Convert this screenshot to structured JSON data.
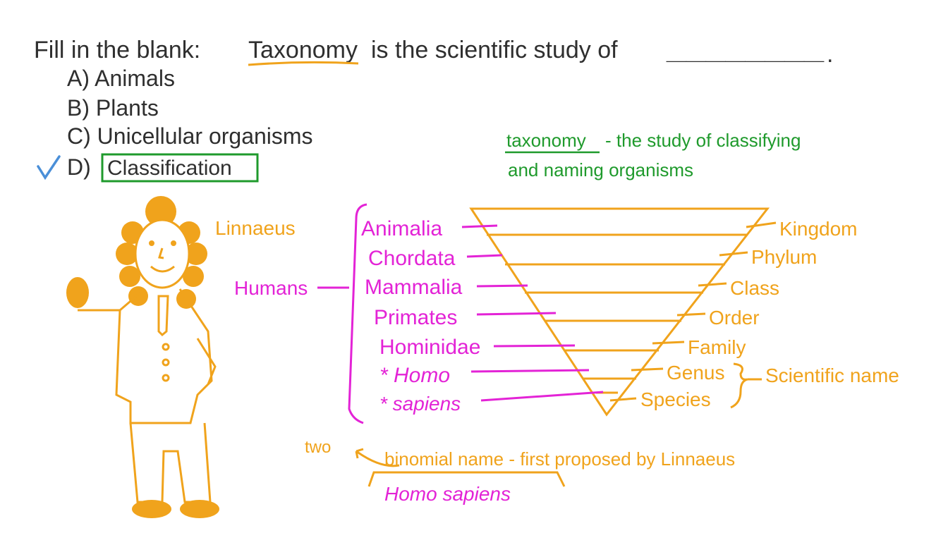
{
  "question": {
    "prefix": "Fill in the blank:",
    "term": "Taxonomy",
    "rest": "is the scientific study of",
    "blank": "________",
    "period": "."
  },
  "options": [
    {
      "label": "A) Animals"
    },
    {
      "label": "B) Plants"
    },
    {
      "label": "C) Unicellular organisms"
    },
    {
      "label": "D)",
      "answer": "Classification",
      "correct": true
    }
  ],
  "definition": {
    "term": "taxonomy",
    "line1": "- the study of classifying",
    "line2": "and naming organisms"
  },
  "figure_label": "Linnaeus",
  "humans_label": "Humans",
  "human_classification": [
    "Animalia",
    "Chordata",
    "Mammalia",
    "Primates",
    "Hominidae",
    "* Homo",
    "* sapiens"
  ],
  "ranks": [
    "Kingdom",
    "Phylum",
    "Class",
    "Order",
    "Family",
    "Genus",
    "Species"
  ],
  "scientific_name_label": "Scientific name",
  "binomial": {
    "two": "two",
    "text": "binomial name - first proposed by Linnaeus",
    "example": "Homo sapiens"
  },
  "colors": {
    "dark": "#2f2f2f",
    "orange": "#f0a31c",
    "magenta": "#e323d6",
    "green": "#1f9a2c",
    "check": "#4a8fd8"
  }
}
